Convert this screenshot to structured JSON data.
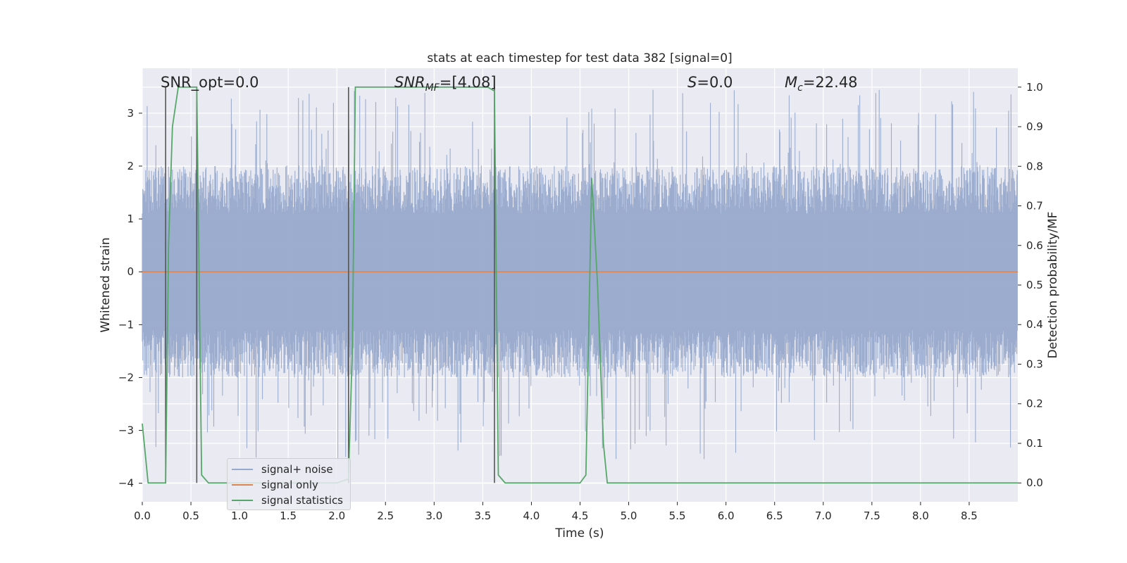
{
  "chart_data": {
    "type": "line",
    "title": "stats at each timestep for test data 382 [signal=0]",
    "xlabel": "Time (s)",
    "ylabel": "Whitened strain",
    "ylabel_right": "Detection probability/MF",
    "xlim": [
      0.0,
      9.0
    ],
    "ylim": [
      -4.35,
      3.85
    ],
    "ylim_right": [
      -0.0476,
      1.0476
    ],
    "x_ticks": [
      "0.0",
      "0.5",
      "1.0",
      "1.5",
      "2.0",
      "2.5",
      "3.0",
      "3.5",
      "4.0",
      "4.5",
      "5.0",
      "5.5",
      "6.0",
      "6.5",
      "7.0",
      "7.5",
      "8.0",
      "8.5"
    ],
    "y_ticks": [
      "3",
      "2",
      "1",
      "0",
      "−1",
      "−2",
      "−3",
      "−4"
    ],
    "y_ticks_right": [
      "1.0",
      "0.9",
      "0.8",
      "0.7",
      "0.6",
      "0.5",
      "0.4",
      "0.3",
      "0.2",
      "0.1",
      "0.0"
    ],
    "grid": true,
    "legend_placement": "lower-left",
    "annotations": {
      "snr_opt": "SNR_opt=0.0",
      "snr_mf_sym": "SNR",
      "snr_mf_sub": "MF",
      "snr_mf_val": "=[4.08]",
      "s_sym": "S",
      "s_val": "=0.0",
      "mc_sym": "M",
      "mc_sub": "c",
      "mc_val": "=22.48"
    },
    "series": [
      {
        "name": "signal+ noise",
        "axis": "left",
        "color": "#97a9cc",
        "description_level": "noise band roughly between -2 and 2, spikes to about ±3.4",
        "band": [
          -2.0,
          2.0
        ],
        "peak": 3.45
      },
      {
        "name": "signal only",
        "axis": "left",
        "color": "#dd8452",
        "x": [
          0.0,
          9.0
        ],
        "y": [
          0.0,
          0.0
        ]
      },
      {
        "name": "signal statistics",
        "axis": "right",
        "color": "#55a868",
        "x": [
          0.0,
          0.06,
          0.24,
          0.27,
          0.31,
          0.37,
          0.56,
          0.61,
          0.68,
          2.0,
          2.12,
          2.16,
          2.19,
          3.55,
          3.62,
          3.66,
          3.73,
          4.5,
          4.56,
          4.62,
          4.68,
          4.74,
          4.78,
          9.0
        ],
        "y": [
          0.15,
          0.0,
          0.0,
          0.6,
          0.9,
          1.0,
          1.0,
          0.02,
          0.0,
          0.0,
          0.01,
          0.35,
          1.0,
          1.0,
          0.99,
          0.02,
          0.0,
          0.0,
          0.02,
          0.77,
          0.5,
          0.1,
          0.0,
          0.0
        ]
      }
    ],
    "vlines": [
      {
        "x": 0.24,
        "y0": 0.0,
        "y1": 1.0
      },
      {
        "x": 0.56,
        "y0": 0.0,
        "y1": 1.0
      },
      {
        "x": 2.12,
        "y0": 0.0,
        "y1": 1.0
      },
      {
        "x": 3.62,
        "y0": 0.0,
        "y1": 1.0
      }
    ]
  }
}
